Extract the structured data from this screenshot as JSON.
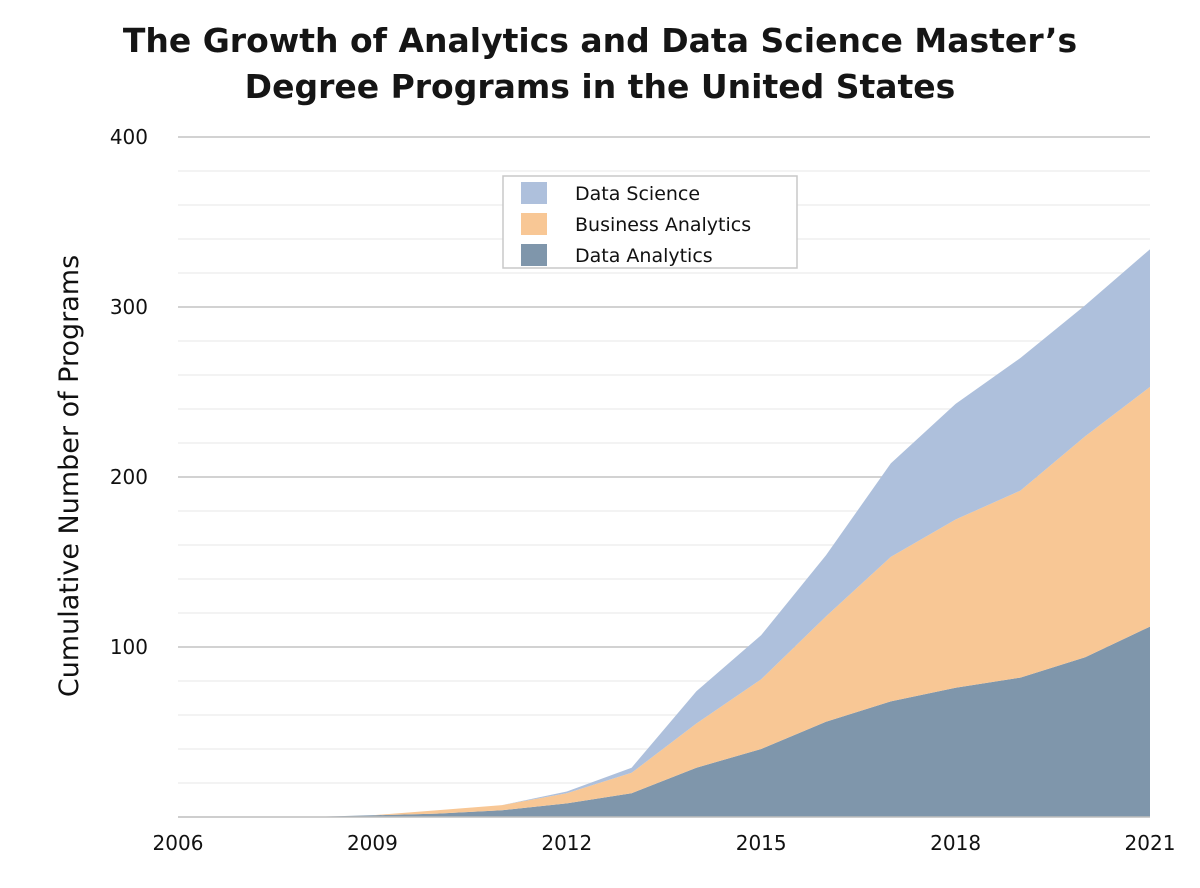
{
  "chart_data": {
    "type": "area",
    "stacked": true,
    "title_lines": [
      "The Growth of Analytics and Data Science Master’s",
      "Degree Programs in the United States"
    ],
    "xlabel": "",
    "ylabel": "Cumulative Number of Programs",
    "xlim": [
      2006,
      2021
    ],
    "ylim": [
      0,
      400
    ],
    "x_ticks": [
      2006,
      2009,
      2012,
      2015,
      2018,
      2021
    ],
    "y_ticks": [
      100,
      200,
      300,
      400
    ],
    "grid": true,
    "legend_position": "top-center",
    "x": [
      2006,
      2007,
      2008,
      2009,
      2010,
      2011,
      2012,
      2013,
      2014,
      2015,
      2016,
      2017,
      2018,
      2019,
      2020,
      2021
    ],
    "series": [
      {
        "name": "Data Analytics",
        "color": "#7f96ab",
        "values": [
          0,
          0,
          0,
          1,
          2,
          4,
          8,
          14,
          29,
          40,
          56,
          68,
          76,
          82,
          94,
          112
        ]
      },
      {
        "name": "Business Analytics",
        "color": "#f8c795",
        "values": [
          0,
          0,
          0,
          0,
          2,
          3,
          6,
          12,
          26,
          41,
          62,
          85,
          99,
          110,
          130,
          141
        ]
      },
      {
        "name": "Data Science",
        "color": "#aec0dc",
        "values": [
          0,
          0,
          0,
          0,
          0,
          0,
          1,
          3,
          19,
          26,
          36,
          55,
          68,
          78,
          77,
          81
        ]
      }
    ],
    "legend_order": [
      "Data Science",
      "Business Analytics",
      "Data Analytics"
    ]
  }
}
